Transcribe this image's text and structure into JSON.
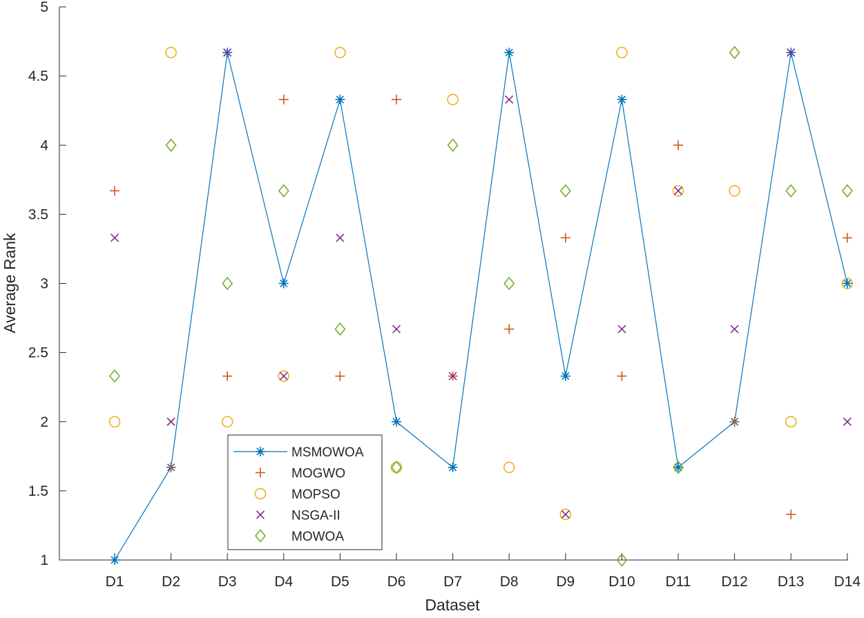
{
  "chart_data": {
    "type": "scatter",
    "title": "",
    "xlabel": "Dataset",
    "ylabel": "Average Rank",
    "categories": [
      "D1",
      "D2",
      "D3",
      "D4",
      "D5",
      "D6",
      "D7",
      "D8",
      "D9",
      "D10",
      "D11",
      "D12",
      "D13",
      "D14"
    ],
    "yticks": [
      "1",
      "1.5",
      "2",
      "2.5",
      "3",
      "3.5",
      "4",
      "4.5",
      "5"
    ],
    "ylim": [
      1,
      5
    ],
    "grid": false,
    "legend_position": "lower-left",
    "series": [
      {
        "name": "MSMOWOA",
        "marker": "asterisk",
        "line": true,
        "color": "#0072BD",
        "values": [
          1.0,
          1.67,
          4.67,
          3.0,
          4.33,
          2.0,
          1.67,
          4.67,
          2.33,
          4.33,
          1.67,
          2.0,
          4.67,
          3.0
        ]
      },
      {
        "name": "MOGWO",
        "marker": "plus",
        "line": false,
        "color": "#D95319",
        "values": [
          3.67,
          1.67,
          2.33,
          4.33,
          2.33,
          4.33,
          2.33,
          2.67,
          3.33,
          2.33,
          4.0,
          2.0,
          1.33,
          3.33
        ]
      },
      {
        "name": "MOPSO",
        "marker": "circle",
        "line": false,
        "color": "#EDB120",
        "values": [
          2.0,
          4.67,
          2.0,
          2.33,
          4.67,
          1.67,
          4.33,
          1.67,
          1.33,
          4.67,
          3.67,
          3.67,
          2.0,
          3.0
        ]
      },
      {
        "name": "NSGA-II",
        "marker": "x",
        "line": false,
        "color": "#7E2F8E",
        "values": [
          3.33,
          2.0,
          4.67,
          2.33,
          3.33,
          2.67,
          2.33,
          4.33,
          1.33,
          2.67,
          3.67,
          2.67,
          4.67,
          2.0
        ]
      },
      {
        "name": "MOWOA",
        "marker": "diamond",
        "line": false,
        "color": "#77AC30",
        "values": [
          2.33,
          4.0,
          3.0,
          3.67,
          2.67,
          1.67,
          4.0,
          3.0,
          3.67,
          1.0,
          1.67,
          4.67,
          3.67,
          3.67
        ]
      }
    ]
  }
}
